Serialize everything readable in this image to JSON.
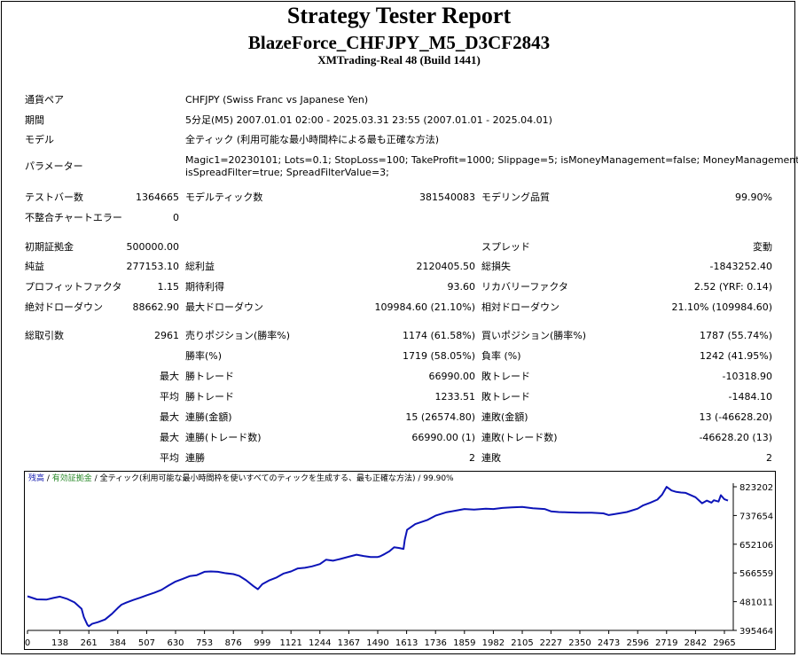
{
  "header": {
    "title": "Strategy Tester Report",
    "ea_name": "BlazeForce_CHFJPY_M5_D3CF2843",
    "server": "XMTrading-Real 48 (Build 1441)"
  },
  "info": {
    "symbol_label": "通貨ペア",
    "symbol_value": "CHFJPY (Swiss Franc vs Japanese Yen)",
    "period_label": "期間",
    "period_value": "5分足(M5) 2007.01.01 02:00 - 2025.03.31 23:55 (2007.01.01 - 2025.04.01)",
    "model_label": "モデル",
    "model_value": "全ティック (利用可能な最小時間枠による最も正確な方法)",
    "params_label": "パラメーター",
    "params_line1": "Magic1=20230101; Lots=0.1; StopLoss=100; TakeProfit=1000; Slippage=5; isMoneyManagement=false; MoneyManagementRisk=3;",
    "params_line2": "isSpreadFilter=true; SpreadFilterValue=3;"
  },
  "stats": {
    "bars_label": "テストバー数",
    "bars_value": "1364665",
    "ticks_label": "モデルティック数",
    "ticks_value": "381540083",
    "quality_label": "モデリング品質",
    "quality_value": "99.90%",
    "errors_label": "不整合チャートエラー",
    "errors_value": "0",
    "deposit_label": "初期証拠金",
    "deposit_value": "500000.00",
    "spread_label": "スプレッド",
    "spread_value": "変動",
    "net_label": "純益",
    "net_value": "277153.10",
    "gross_profit_label": "総利益",
    "gross_profit_value": "2120405.50",
    "gross_loss_label": "総損失",
    "gross_loss_value": "-1843252.40",
    "pf_label": "プロフィットファクタ",
    "pf_value": "1.15",
    "expected_label": "期待利得",
    "expected_value": "93.60",
    "recovery_label": "リカバリーファクタ",
    "recovery_value": "2.52 (YRF: 0.14)",
    "abs_dd_label": "絶対ドローダウン",
    "abs_dd_value": "88662.90",
    "max_dd_label": "最大ドローダウン",
    "max_dd_value": "109984.60 (21.10%)",
    "rel_dd_label": "相対ドローダウン",
    "rel_dd_value": "21.10% (109984.60)",
    "trades_label": "総取引数",
    "trades_value": "2961",
    "short_label": "売りポジション(勝率%)",
    "short_value": "1174 (61.58%)",
    "long_label": "買いポジション(勝率%)",
    "long_value": "1787 (55.74%)",
    "win_label": "勝率(%)",
    "win_value": "1719 (58.05%)",
    "loss_label": "負率 (%)",
    "loss_value": "1242 (41.95%)",
    "max_word": "最大",
    "avg_word": "平均",
    "lwin_label": "勝トレード",
    "lwin_value": "66990.00",
    "lloss_label": "敗トレード",
    "lloss_value": "-10318.90",
    "awin_label": "勝トレード",
    "awin_value": "1233.51",
    "aloss_label": "敗トレード",
    "aloss_value": "-1484.10",
    "mcw_amt_label": "連勝(金額)",
    "mcw_amt_value": "15 (26574.80)",
    "mcl_amt_label": "連敗(金額)",
    "mcl_amt_value": "13 (-46628.20)",
    "mcw_cnt_label": "連勝(トレード数)",
    "mcw_cnt_value": "66990.00 (1)",
    "mcl_cnt_label": "連敗(トレード数)",
    "mcl_cnt_value": "-46628.20 (13)",
    "acw_label": "連勝",
    "acw_value": "2",
    "acl_label": "連敗",
    "acl_value": "2"
  },
  "chart_data": {
    "type": "line",
    "legend": {
      "part1": "残高",
      "sep1": " / ",
      "part2": "有効証拠金",
      "sep2": " / ",
      "part3": "全ティック(利用可能な最小時間枠を使いすべてのティックを生成する、最も正確な方法)",
      "sep3": " / ",
      "part4": "99.90%"
    },
    "x_ticks": [
      "0",
      "138",
      "261",
      "384",
      "507",
      "630",
      "753",
      "876",
      "999",
      "1121",
      "1244",
      "1367",
      "1490",
      "1613",
      "1736",
      "1859",
      "1982",
      "2105",
      "2227",
      "2350",
      "2473",
      "2596",
      "2719",
      "2842",
      "2965"
    ],
    "y_ticks": [
      "823202",
      "737654",
      "652106",
      "566559",
      "481011",
      "395464"
    ],
    "xlim": [
      0,
      2965
    ],
    "ylim": [
      395464,
      823202
    ],
    "series": [
      {
        "color": "#0c14b8",
        "x": [
          0,
          40,
          80,
          110,
          138,
          170,
          200,
          230,
          240,
          255,
          261,
          275,
          300,
          330,
          360,
          384,
          400,
          420,
          450,
          480,
          507,
          540,
          570,
          600,
          630,
          660,
          690,
          720,
          753,
          780,
          810,
          840,
          876,
          900,
          930,
          960,
          980,
          999,
          1030,
          1060,
          1090,
          1121,
          1150,
          1180,
          1210,
          1244,
          1270,
          1300,
          1330,
          1367,
          1400,
          1430,
          1460,
          1490,
          1500,
          1520,
          1540,
          1560,
          1580,
          1600,
          1605,
          1615,
          1650,
          1700,
          1736,
          1780,
          1820,
          1859,
          1900,
          1950,
          1982,
          2020,
          2060,
          2105,
          2150,
          2200,
          2227,
          2260,
          2300,
          2350,
          2400,
          2450,
          2473,
          2500,
          2550,
          2596,
          2620,
          2650,
          2680,
          2700,
          2719,
          2740,
          2760,
          2780,
          2800,
          2842,
          2870,
          2890,
          2910,
          2920,
          2940,
          2950,
          2965,
          2980
        ],
        "y": [
          497000,
          488000,
          487000,
          492000,
          496000,
          489000,
          479000,
          460000,
          435000,
          412000,
          408000,
          415000,
          420000,
          428000,
          445000,
          462000,
          472000,
          478000,
          486000,
          493000,
          500000,
          508000,
          516000,
          529000,
          541000,
          549000,
          557000,
          560000,
          570000,
          571000,
          570000,
          566000,
          563000,
          558000,
          545000,
          528000,
          518000,
          533000,
          545000,
          553000,
          565000,
          571000,
          580000,
          582000,
          586000,
          593000,
          606000,
          603000,
          608000,
          615000,
          621000,
          617000,
          614000,
          614000,
          616000,
          623000,
          631000,
          643000,
          641000,
          638000,
          665000,
          695000,
          712000,
          724000,
          737000,
          747000,
          752000,
          757000,
          755000,
          758000,
          757000,
          760000,
          762000,
          763000,
          759000,
          757000,
          750000,
          748000,
          747000,
          746000,
          746000,
          744000,
          739000,
          742000,
          748000,
          758000,
          768000,
          776000,
          785000,
          800000,
          823000,
          812000,
          808000,
          806000,
          805000,
          792000,
          774000,
          782000,
          776000,
          783000,
          779000,
          798000,
          786000,
          782000
        ]
      }
    ]
  }
}
